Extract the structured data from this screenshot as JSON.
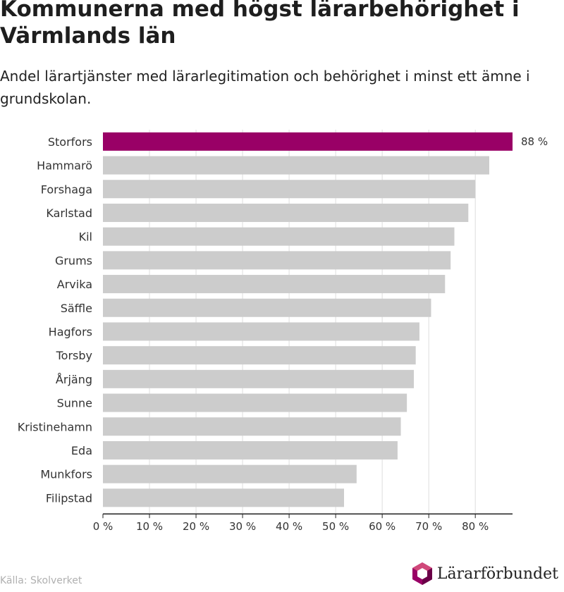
{
  "title": "Kommunerna med högst lärarbehörighet i Värmlands län",
  "subtitle": "Andel lärartjänster med lärarlegitimation och behörighet i minst ett ämne i grundskolan.",
  "source": "Källa: Skolverket",
  "brand": {
    "name": "Lärarförbundet",
    "logo_icon": "lararforbundet-logo-icon"
  },
  "colors": {
    "highlight": "#990066",
    "bar": "#cccccc",
    "grid": "#dddddd",
    "axis": "#222222"
  },
  "chart_data": {
    "type": "bar",
    "orientation": "horizontal",
    "categories": [
      "Storfors",
      "Hammarö",
      "Forshaga",
      "Karlstad",
      "Kil",
      "Grums",
      "Arvika",
      "Säffle",
      "Hagfors",
      "Torsby",
      "Årjäng",
      "Sunne",
      "Kristinehamn",
      "Eda",
      "Munkfors",
      "Filipstad"
    ],
    "values": [
      88,
      83,
      80,
      78.5,
      75.5,
      74.7,
      73.5,
      70.5,
      68,
      67.2,
      66.8,
      65.3,
      64,
      63.3,
      54.5,
      51.8
    ],
    "highlight_index": 0,
    "data_labels": [
      "88 %"
    ],
    "xlim": [
      0,
      88
    ],
    "xticks": [
      0,
      10,
      20,
      30,
      40,
      50,
      60,
      70,
      80
    ],
    "xtick_labels": [
      "0 %",
      "10 %",
      "20 %",
      "30 %",
      "40 %",
      "50 %",
      "60 %",
      "70 %",
      "80 %"
    ],
    "grid": true,
    "legend": "none"
  }
}
